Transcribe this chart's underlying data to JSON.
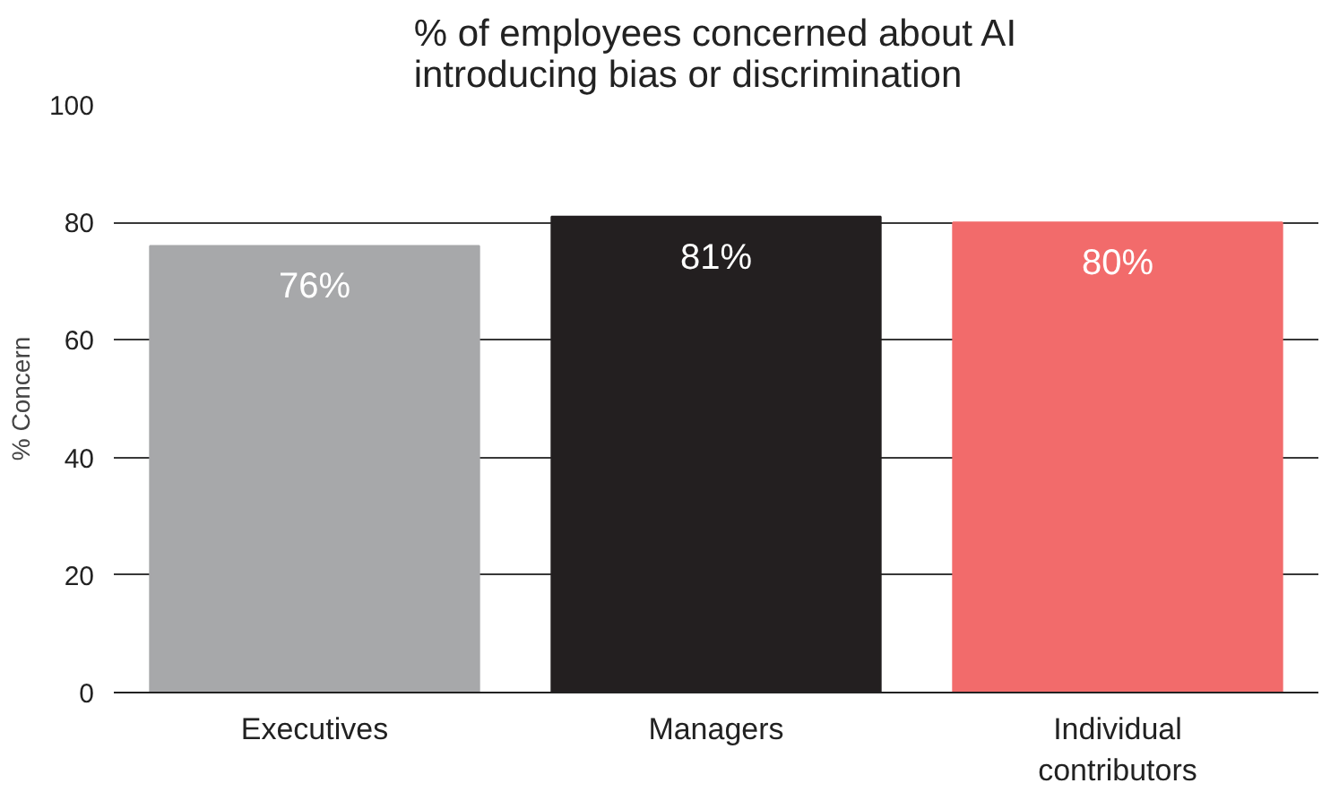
{
  "chart_data": {
    "type": "bar",
    "title": "% of employees concerned about AI\nintroducing bias or discrimination",
    "ylabel": "% Concern",
    "categories": [
      "Executives",
      "Managers",
      "Individual\ncontributors"
    ],
    "values": [
      76,
      81,
      80
    ],
    "colors": [
      "#a7a8aa",
      "#231f20",
      "#f26b6b"
    ],
    "value_labels": [
      "76%",
      "81%",
      "80%"
    ],
    "ylim": [
      0,
      100
    ],
    "yticks": [
      0,
      20,
      40,
      60,
      80,
      100
    ],
    "grid": "y"
  }
}
